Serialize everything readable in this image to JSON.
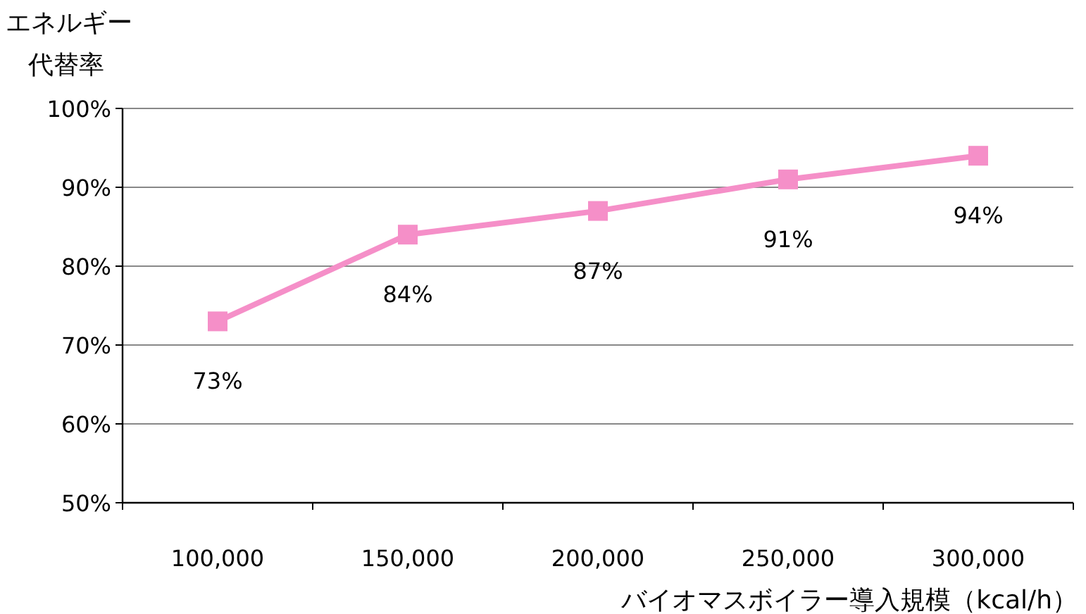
{
  "chart_data": {
    "type": "line",
    "ylabel": "エネルギー代替率",
    "xlabel": "バイオマスボイラー導入規模（kcal/h）",
    "categories": [
      "100,000",
      "150,000",
      "200,000",
      "250,000",
      "300,000"
    ],
    "series": [
      {
        "color": "#f58fc8",
        "values": [
          73,
          84,
          87,
          91,
          94
        ],
        "value_labels": [
          "73%",
          "84%",
          "87%",
          "91%",
          "94%"
        ]
      }
    ],
    "ylim": [
      50,
      100
    ],
    "yticks": [
      {
        "value": 50,
        "label": "50%"
      },
      {
        "value": 60,
        "label": "60%"
      },
      {
        "value": 70,
        "label": "70%"
      },
      {
        "value": 80,
        "label": "80%"
      },
      {
        "value": 90,
        "label": "90%"
      },
      {
        "value": 100,
        "label": "100%"
      }
    ],
    "grid": "y",
    "marker": "square",
    "line_style": "solid"
  }
}
